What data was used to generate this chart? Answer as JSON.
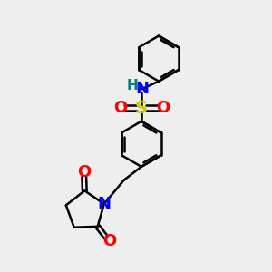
{
  "background_color": "#eeeeee",
  "bond_color": "#000000",
  "bond_width": 1.8,
  "S_color": "#cccc00",
  "O_color": "#ff0000",
  "N_color": "#0000ff",
  "H_color": "#008080",
  "font_size_S": 14,
  "font_size_atom": 13,
  "font_size_H": 11,
  "fig_size": [
    3.0,
    3.0
  ],
  "dpi": 100,
  "xlim": [
    0,
    10
  ],
  "ylim": [
    0,
    10
  ]
}
